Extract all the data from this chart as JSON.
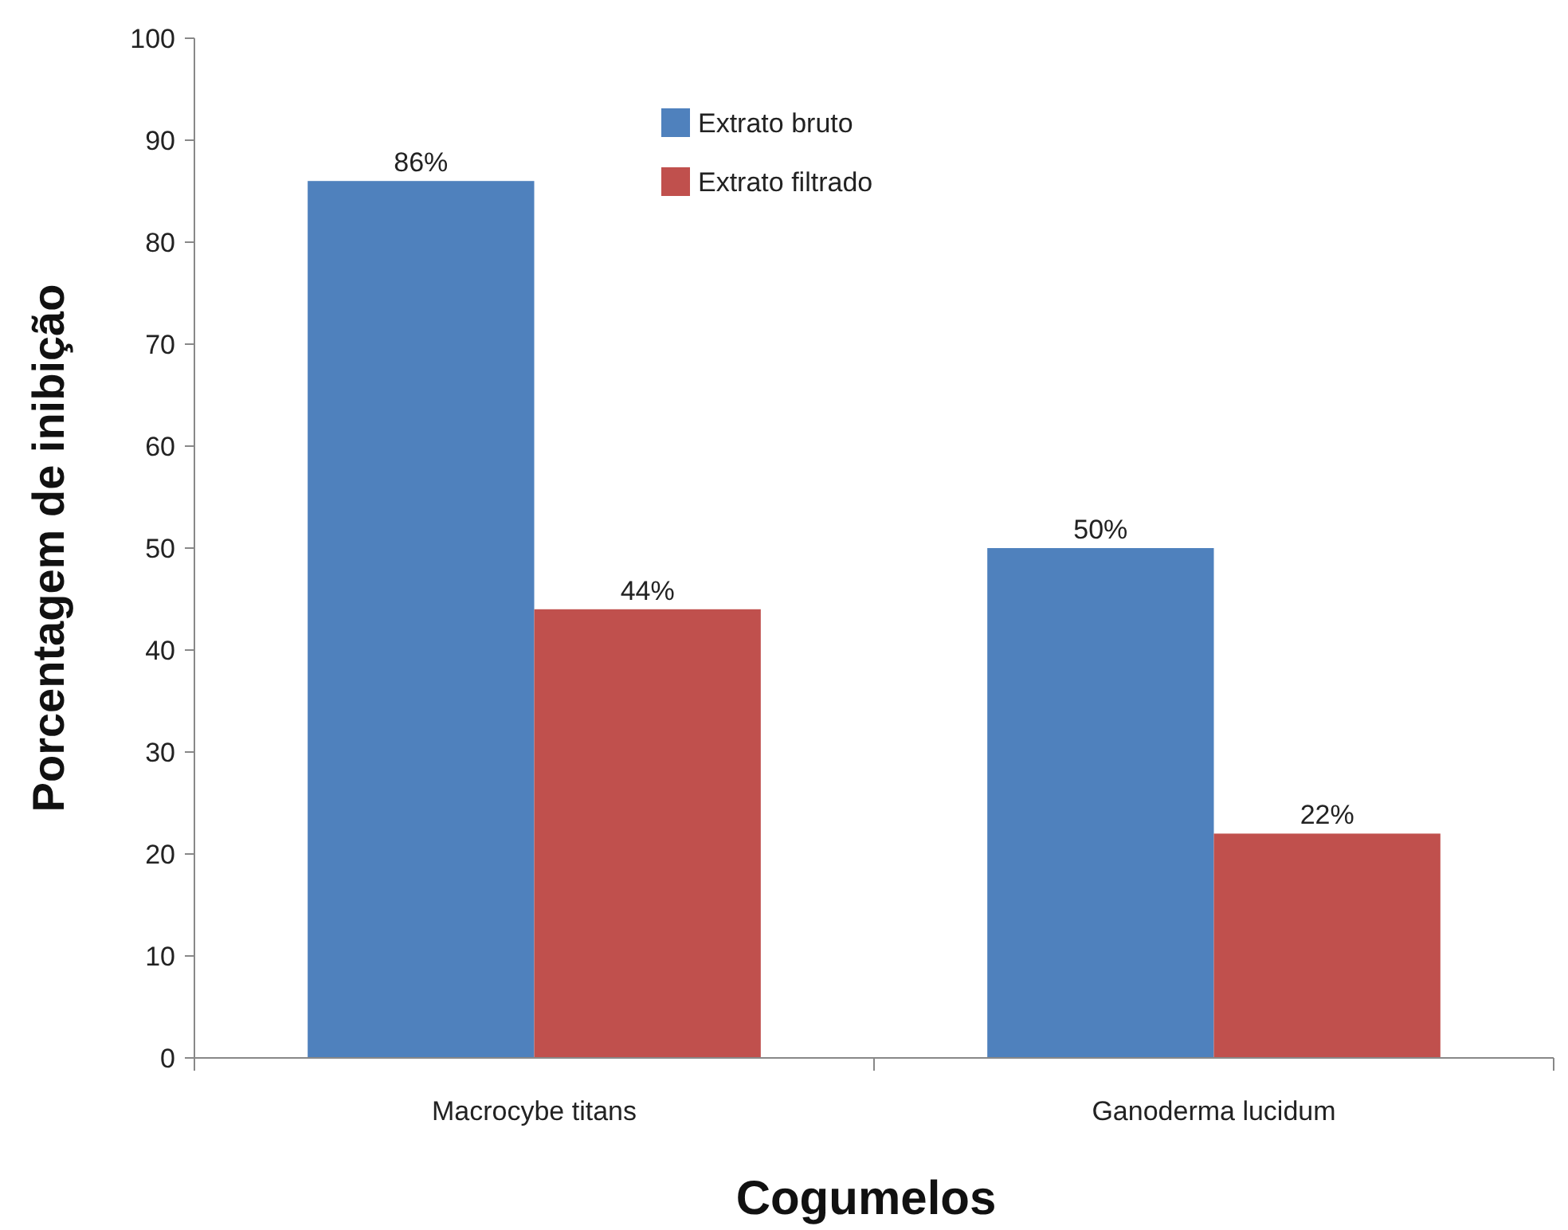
{
  "chart_data": {
    "type": "bar",
    "xlabel": "Cogumelos",
    "ylabel": "Porcentagem de inibição",
    "categories": [
      "Macrocybe titans",
      "Ganoderma lucidum"
    ],
    "series": [
      {
        "name": "Extrato bruto",
        "color": "#4f81bd",
        "values": [
          86,
          50
        ],
        "value_labels": [
          "86%",
          "50%"
        ]
      },
      {
        "name": "Extrato filtrado",
        "color": "#c0504d",
        "values": [
          44,
          22
        ],
        "value_labels": [
          "44%",
          "22%"
        ]
      }
    ],
    "ylim": [
      0,
      100
    ],
    "yticks": [
      0,
      10,
      20,
      30,
      40,
      50,
      60,
      70,
      80,
      90,
      100
    ],
    "grid": false,
    "legend": "top"
  }
}
